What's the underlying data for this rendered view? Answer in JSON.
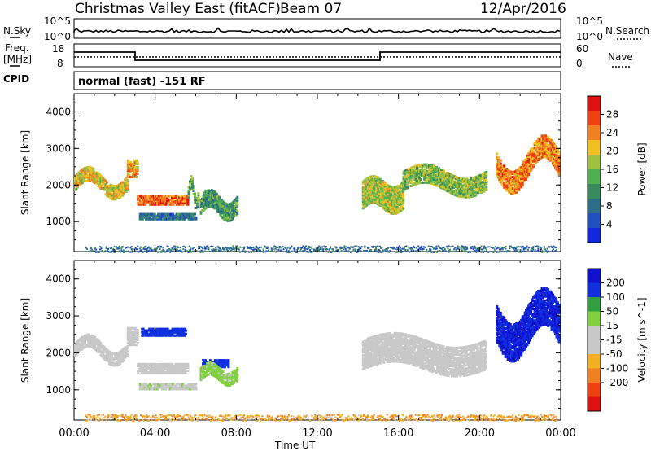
{
  "header": {
    "title": "Christmas Valley East (fitACF)",
    "beam": "Beam 07",
    "date": "12/Apr/2016"
  },
  "noise_panel": {
    "left_label": "N.Sky",
    "right_label": "N.Search",
    "tick_top": "10^5",
    "tick_bottom": "10^0"
  },
  "freq_panel": {
    "left_label_1": "Freq.",
    "left_label_2": "[MHz]",
    "right_label": "Nave",
    "left_ticks": [
      "18",
      "8"
    ],
    "right_ticks": [
      "60",
      "0"
    ]
  },
  "cpid": {
    "label": "CPID",
    "value": "normal (fast) -151 RF"
  },
  "colors": {
    "scale": [
      "#1028e0",
      "#2050c0",
      "#2c6e8a",
      "#3a8a60",
      "#50b050",
      "#a0c040",
      "#f0c020",
      "#f08020",
      "#f04010",
      "#e01010"
    ],
    "velocity_scale": [
      "#1010d0",
      "#1030e0",
      "#30a040",
      "#80d040",
      "#c8c8c8",
      "#c8c8c8",
      "#f0b020",
      "#f08020",
      "#f04010",
      "#e01010"
    ],
    "grey": "#c8c8c8"
  },
  "chart_data": [
    {
      "type": "heatmap",
      "name": "Power",
      "ylabel": "Slant Range [km]",
      "ylim": [
        180,
        4500
      ],
      "yticks": [
        "1000",
        "2000",
        "3000",
        "4000"
      ],
      "colorbar_label": "Power [dB]",
      "colorbar_ticks": [
        "4",
        "8",
        "12",
        "16",
        "20",
        "24",
        "28"
      ],
      "colorbar_range": [
        0,
        32
      ],
      "bands": [
        {
          "t0": 0.0,
          "t1": 2.6,
          "r0": 1900,
          "r1": 2300,
          "slope": 260,
          "value": 20
        },
        {
          "t0": 2.6,
          "t1": 3.1,
          "r0": 2250,
          "r1": 2700,
          "slope": 0,
          "value": 22
        },
        {
          "t0": 3.1,
          "t1": 5.6,
          "r0": 1500,
          "r1": 1750,
          "slope": 0,
          "value": 26
        },
        {
          "t0": 5.6,
          "t1": 6.1,
          "r0": 1700,
          "r1": 2000,
          "slope": 300,
          "value": 14
        },
        {
          "t0": 3.2,
          "t1": 6.0,
          "r0": 1100,
          "r1": 1250,
          "slope": 0,
          "value": 8
        },
        {
          "t0": 6.2,
          "t1": 8.0,
          "r0": 1250,
          "r1": 1700,
          "slope": 200,
          "value": 12
        },
        {
          "t0": 14.2,
          "t1": 16.2,
          "r0": 1400,
          "r1": 2150,
          "slope": 150,
          "value": 18
        },
        {
          "t0": 16.2,
          "t1": 20.3,
          "r0": 1900,
          "r1": 2400,
          "slope": 200,
          "value": 16
        },
        {
          "t0": 20.8,
          "t1": 23.9,
          "r0": 2300,
          "r1": 2900,
          "slope": -500,
          "value": 24
        }
      ],
      "ground": {
        "r0": 180,
        "r1": 350,
        "t0": 0.5,
        "t1": 23.8,
        "value": 8
      }
    },
    {
      "type": "heatmap",
      "name": "Velocity",
      "ylabel": "Slant Range [km]",
      "ylim": [
        180,
        4500
      ],
      "yticks": [
        "1000",
        "2000",
        "3000",
        "4000"
      ],
      "xlabel": "Time UT",
      "xticks": [
        "00:00",
        "04:00",
        "08:00",
        "12:00",
        "16:00",
        "20:00",
        "00:00"
      ],
      "xlim": [
        0,
        24
      ],
      "colorbar_label": "Velocity [m s^-1]",
      "colorbar_ticks": [
        "200",
        "100",
        "50",
        "15",
        "-15",
        "-50",
        "-100",
        "-200"
      ],
      "bands": [
        {
          "t0": 0.0,
          "t1": 2.6,
          "r0": 1950,
          "r1": 2300,
          "slope": 260,
          "value": 0
        },
        {
          "t0": 2.6,
          "t1": 3.1,
          "r0": 2250,
          "r1": 2700,
          "slope": 0,
          "value": 0
        },
        {
          "t0": 3.1,
          "t1": 5.6,
          "r0": 1500,
          "r1": 1750,
          "slope": 0,
          "value": 0
        },
        {
          "t0": 3.3,
          "t1": 5.5,
          "r0": 2500,
          "r1": 2700,
          "slope": 0,
          "value": 180
        },
        {
          "t0": 6.3,
          "t1": 7.6,
          "r0": 1650,
          "r1": 1850,
          "slope": 0,
          "value": 180
        },
        {
          "t0": 6.2,
          "t1": 8.0,
          "r0": 1300,
          "r1": 1650,
          "slope": 150,
          "value": 60
        },
        {
          "t0": 3.2,
          "t1": 6.0,
          "r0": 1050,
          "r1": 1200,
          "slope": 0,
          "value": 40
        },
        {
          "t0": 14.2,
          "t1": 20.3,
          "r0": 1600,
          "r1": 2400,
          "slope": 200,
          "value": 0
        },
        {
          "t0": 20.8,
          "t1": 23.9,
          "r0": 2300,
          "r1": 3300,
          "slope": -500,
          "value": 200
        }
      ],
      "ground": {
        "r0": 180,
        "r1": 350,
        "t0": 0.5,
        "t1": 23.8,
        "value": -40
      }
    }
  ]
}
